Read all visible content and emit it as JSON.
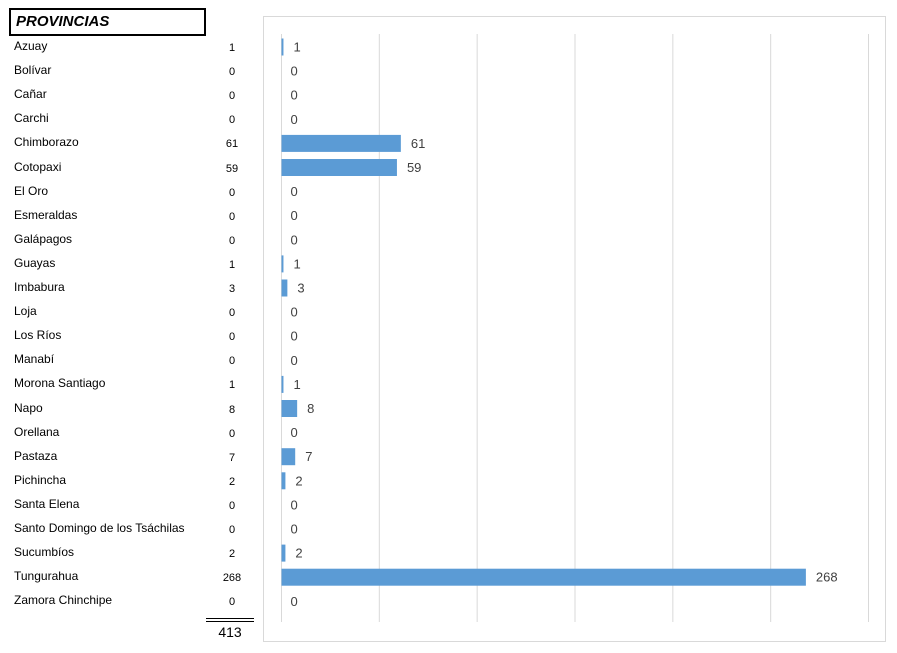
{
  "table": {
    "header": "PROVINCIAS",
    "total": "413"
  },
  "chart_data": {
    "type": "bar",
    "orientation": "horizontal",
    "categories": [
      "Azuay",
      "Bolívar",
      "Cañar",
      "Carchi",
      "Chimborazo",
      "Cotopaxi",
      "El Oro",
      "Esmeraldas",
      "Galápagos",
      "Guayas",
      "Imbabura",
      "Loja",
      "Los Ríos",
      "Manabí",
      "Morona Santiago",
      "Napo",
      "Orellana",
      "Pastaza",
      "Pichincha",
      "Santa Elena",
      "Santo Domingo de los Tsáchilas",
      "Sucumbíos",
      "Tungurahua",
      "Zamora Chinchipe"
    ],
    "values": [
      1,
      0,
      0,
      0,
      61,
      59,
      0,
      0,
      0,
      1,
      3,
      0,
      0,
      0,
      1,
      8,
      0,
      7,
      2,
      0,
      0,
      2,
      268,
      0
    ],
    "xlim": [
      0,
      300
    ],
    "grid": true,
    "bar_color": "#5b9bd5",
    "data_labels": true,
    "title": "",
    "xlabel": "",
    "ylabel": ""
  }
}
